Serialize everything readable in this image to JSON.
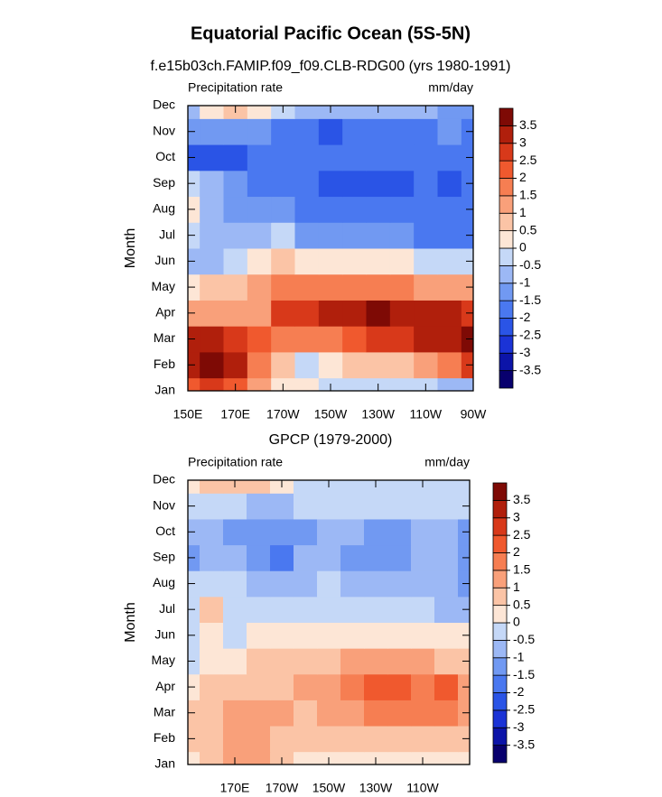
{
  "title": "Equatorial Pacific Ocean (5S-5N)",
  "chart_data": [
    {
      "type": "contour",
      "subtitle": "f.e15b03ch.FAMIP.f09_f09.CLB-RDG00 (yrs 1980-1991)",
      "left_label": "Precipitation rate",
      "right_label": "mm/day",
      "ylabel": "Month",
      "categories": [
        "Jan",
        "Feb",
        "Mar",
        "Apr",
        "May",
        "Jun",
        "Jul",
        "Aug",
        "Sep",
        "Oct",
        "Nov",
        "Dec"
      ],
      "x": [
        150,
        160,
        170,
        180,
        190,
        200,
        210,
        220,
        230,
        240,
        250,
        260,
        270
      ],
      "xlim": [
        150,
        270
      ],
      "xticks": [
        {
          "value": 150,
          "label": "150E"
        },
        {
          "value": 170,
          "label": "170E"
        },
        {
          "value": 190,
          "label": "170W"
        },
        {
          "value": 210,
          "label": "150W"
        },
        {
          "value": 230,
          "label": "130W"
        },
        {
          "value": 250,
          "label": "110W"
        },
        {
          "value": 270,
          "label": "90W"
        }
      ],
      "levels": [
        -3.5,
        -3,
        -2.5,
        -2,
        -1.5,
        -1,
        -0.5,
        0,
        0.5,
        1,
        1.5,
        2,
        2.5,
        3,
        3.5
      ],
      "colors": [
        "#08006e",
        "#0c14a8",
        "#1b33d6",
        "#2a54e6",
        "#4a78f0",
        "#7199f2",
        "#9cb8f5",
        "#c5d8f7",
        "#fde6d6",
        "#fbc4a6",
        "#f9a07a",
        "#f67e52",
        "#f0592e",
        "#d8391a",
        "#b01f0c",
        "#7e0a05"
      ],
      "z": [
        [
          2.2,
          2.8,
          2.2,
          1.3,
          0.4,
          0.2,
          -0.2,
          -0.3,
          -0.3,
          -0.4,
          -0.5,
          -0.6,
          -0.6
        ],
        [
          3.2,
          3.6,
          3,
          1.8,
          0.8,
          -0.2,
          0.3,
          0.6,
          0.7,
          0.9,
          1.2,
          1.8,
          2.5
        ],
        [
          3,
          3.2,
          2.6,
          2,
          1.6,
          1.8,
          1.9,
          2.2,
          2.6,
          2.9,
          3.1,
          3.3,
          3.7
        ],
        [
          1.3,
          1.4,
          1.3,
          1.2,
          2.5,
          2.9,
          3.1,
          3.2,
          3.5,
          3.3,
          3.2,
          3.1,
          2.8
        ],
        [
          0.4,
          0.5,
          0.8,
          1.3,
          1.7,
          1.9,
          1.8,
          1.6,
          1.6,
          1.5,
          1.3,
          1.2,
          1
        ],
        [
          -0.8,
          -0.6,
          -0.3,
          0.3,
          0.5,
          0.4,
          0.3,
          0.2,
          0.1,
          0,
          -0.1,
          -0.2,
          -0.3
        ],
        [
          -0.4,
          -0.7,
          -0.8,
          -0.7,
          -0.4,
          -1.2,
          -1.3,
          -1.4,
          -1.5,
          -1.5,
          -1.6,
          -1.7,
          -1.6
        ],
        [
          0.2,
          -0.8,
          -1.1,
          -1.2,
          -1.4,
          -1.7,
          -1.8,
          -1.8,
          -1.9,
          -1.9,
          -1.9,
          -1.9,
          -1.8
        ],
        [
          -0.4,
          -1,
          -1.5,
          -1.8,
          -1.9,
          -2,
          -2.1,
          -2.1,
          -2.2,
          -2.3,
          -2,
          -2.1,
          -2
        ],
        [
          -2.2,
          -2.3,
          -2.1,
          -2,
          -1.9,
          -1.9,
          -1.9,
          -1.9,
          -1.9,
          -1.9,
          -1.8,
          -1.8,
          -1.8
        ],
        [
          -1.2,
          -1.3,
          -1.4,
          -1.5,
          -1.7,
          -1.9,
          -2.1,
          -1.8,
          -1.7,
          -1.7,
          -1.6,
          -1.5,
          -1.6
        ],
        [
          -0.6,
          0.2,
          0.6,
          0,
          -0.5,
          -0.8,
          -0.9,
          -0.9,
          -0.9,
          -1,
          -1,
          -1.1,
          -1.1
        ]
      ]
    },
    {
      "type": "contour",
      "subtitle": "GPCP (1979-2000)",
      "left_label": "Precipitation rate",
      "right_label": "mm/day",
      "ylabel": "Month",
      "categories": [
        "Jan",
        "Feb",
        "Mar",
        "Apr",
        "May",
        "Jun",
        "Jul",
        "Aug",
        "Sep",
        "Oct",
        "Nov",
        "Dec"
      ],
      "x": [
        150,
        160,
        170,
        180,
        190,
        200,
        210,
        220,
        230,
        240,
        250,
        260,
        270
      ],
      "xlim": [
        150,
        270
      ],
      "xticks": [
        {
          "value": 170,
          "label": "170E"
        },
        {
          "value": 190,
          "label": "170W"
        },
        {
          "value": 210,
          "label": "150W"
        },
        {
          "value": 230,
          "label": "130W"
        },
        {
          "value": 250,
          "label": "110W"
        }
      ],
      "levels": [
        -3.5,
        -3,
        -2.5,
        -2,
        -1.5,
        -1,
        -0.5,
        0,
        0.5,
        1,
        1.5,
        2,
        2.5,
        3,
        3.5
      ],
      "colors": [
        "#08006e",
        "#0c14a8",
        "#1b33d6",
        "#2a54e6",
        "#4a78f0",
        "#7199f2",
        "#9cb8f5",
        "#c5d8f7",
        "#fde6d6",
        "#fbc4a6",
        "#f9a07a",
        "#f67e52",
        "#f0592e",
        "#d8391a",
        "#b01f0c",
        "#7e0a05"
      ],
      "z": [
        [
          0.4,
          0.5,
          1,
          1.2,
          0.6,
          0.2,
          0.2,
          0.3,
          0.3,
          0.3,
          0.2,
          0.2,
          0.2
        ],
        [
          0.6,
          0.8,
          1.3,
          1.2,
          0.9,
          0.5,
          0.5,
          0.6,
          0.8,
          0.9,
          0.9,
          0.8,
          0.6
        ],
        [
          0.6,
          0.8,
          1.1,
          1.2,
          1,
          0.8,
          1,
          1.3,
          1.7,
          1.8,
          1.7,
          1.7,
          1.2
        ],
        [
          0.3,
          0.5,
          0.6,
          0.7,
          0.8,
          1,
          1.3,
          1.6,
          2,
          2.1,
          1.9,
          2,
          1.3
        ],
        [
          -0.1,
          0.2,
          0.3,
          0.5,
          0.6,
          0.7,
          0.8,
          1,
          1.1,
          1,
          1,
          0.9,
          0.6
        ],
        [
          -0.4,
          0.3,
          -0.2,
          0,
          0.1,
          0.1,
          0.2,
          0.2,
          0.2,
          0.2,
          0.2,
          0.1,
          0
        ],
        [
          -0.4,
          0.6,
          -0.5,
          -0.4,
          -0.5,
          -0.5,
          -0.4,
          -0.4,
          -0.4,
          -0.5,
          -0.5,
          -0.6,
          -0.7
        ],
        [
          -0.5,
          -0.1,
          -0.5,
          -0.6,
          -0.7,
          -0.6,
          -0.5,
          -0.6,
          -0.7,
          -0.6,
          -0.6,
          -0.8,
          -1.1
        ],
        [
          -1.1,
          -0.8,
          -0.9,
          -1.4,
          -1.6,
          -0.8,
          -0.7,
          -1.2,
          -1.2,
          -1.2,
          -0.8,
          -0.9,
          -1.2
        ],
        [
          -0.7,
          -0.8,
          -1.2,
          -1.3,
          -1.3,
          -1.1,
          -0.7,
          -1,
          -1.2,
          -1.1,
          -0.8,
          -1,
          -1.1
        ],
        [
          -0.3,
          -0.3,
          -0.4,
          -0.6,
          -0.6,
          -0.5,
          -0.4,
          -0.4,
          -0.4,
          -0.4,
          -0.4,
          -0.4,
          -0.5
        ],
        [
          0.2,
          0.6,
          0.8,
          0.6,
          0.2,
          -0.1,
          -0.2,
          -0.2,
          -0.3,
          -0.3,
          -0.3,
          -0.3,
          -0.3
        ]
      ]
    }
  ]
}
